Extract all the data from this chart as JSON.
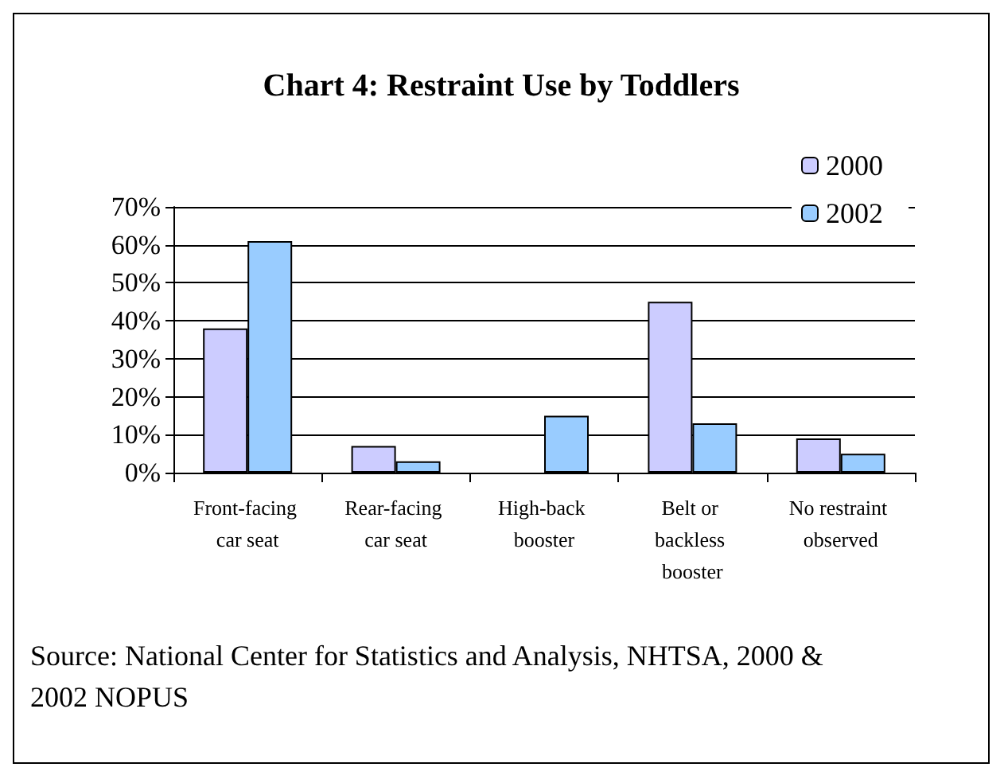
{
  "chart_data": {
    "type": "bar",
    "title": "Chart 4: Restraint Use by Toddlers",
    "categories": [
      "Front-facing car seat",
      "Rear-facing car seat",
      "High-back booster",
      "Belt or backless booster",
      "No restraint observed"
    ],
    "series": [
      {
        "name": "2000",
        "color": "#ccccff",
        "values": [
          38,
          7,
          null,
          45,
          9
        ]
      },
      {
        "name": "2002",
        "color": "#99ccff",
        "values": [
          61,
          3,
          15,
          13,
          5
        ]
      }
    ],
    "ylim": [
      0,
      70
    ],
    "yticks": [
      {
        "value": 0,
        "label": "0%"
      },
      {
        "value": 10,
        "label": "10%"
      },
      {
        "value": 20,
        "label": "20%"
      },
      {
        "value": 30,
        "label": "30%"
      },
      {
        "value": 40,
        "label": "40%"
      },
      {
        "value": 50,
        "label": "50%"
      },
      {
        "value": 60,
        "label": "60%"
      },
      {
        "value": 70,
        "label": "70%"
      }
    ],
    "grid": "y",
    "legend": "top right",
    "annotations": [
      "Source: National Center for Statistics and Analysis, NHTSA, 2000 & 2002 NOPUS"
    ]
  }
}
